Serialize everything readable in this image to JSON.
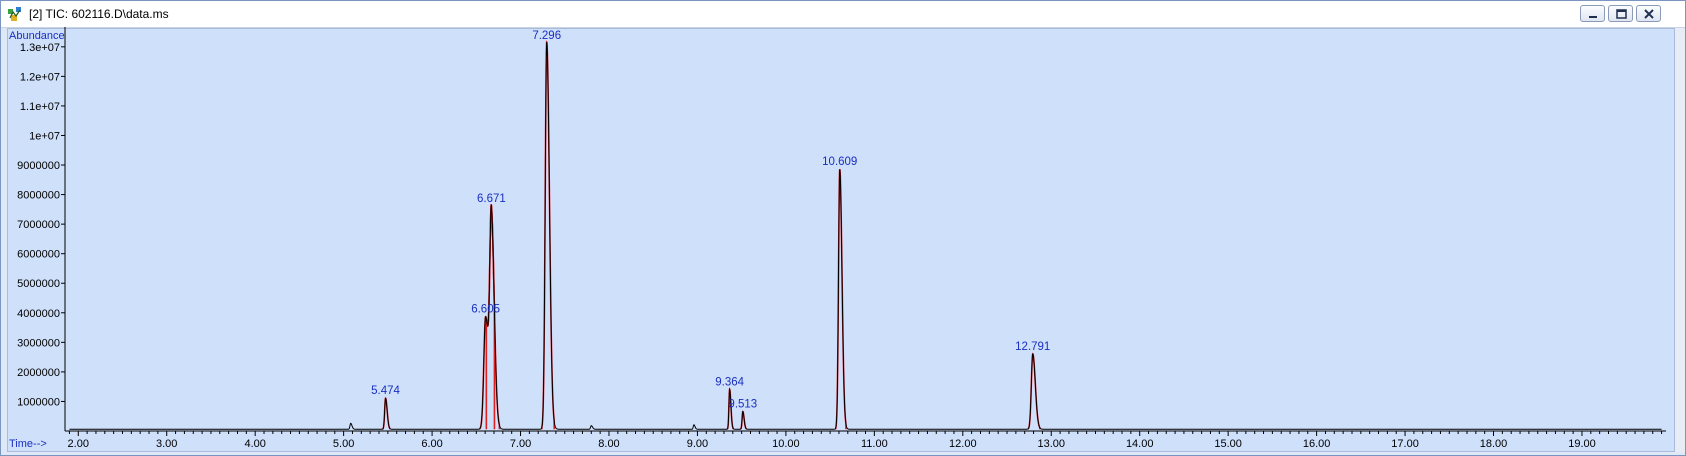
{
  "window": {
    "title": "[2] TIC: 602116.D\\data.ms",
    "icon": "chromatogram-app-icon",
    "controls": [
      "minimize",
      "restore",
      "close"
    ]
  },
  "chart_data": {
    "type": "line",
    "ylabel": "Abundance",
    "xlabel": "Time-->",
    "xlim": [
      1.85,
      19.95
    ],
    "ylim": [
      0,
      13400000
    ],
    "x_ticks": [
      2,
      3,
      4,
      5,
      6,
      7,
      8,
      9,
      10,
      11,
      12,
      13,
      14,
      15,
      16,
      17,
      18,
      19
    ],
    "x_tick_labels": [
      "2.00",
      "3.00",
      "4.00",
      "5.00",
      "6.00",
      "7.00",
      "8.00",
      "9.00",
      "10.00",
      "11.00",
      "12.00",
      "13.00",
      "14.00",
      "15.00",
      "16.00",
      "17.00",
      "18.00",
      "19.00"
    ],
    "y_ticks": [
      1000000,
      2000000,
      3000000,
      4000000,
      5000000,
      6000000,
      7000000,
      8000000,
      9000000,
      10000000,
      11000000,
      12000000,
      13000000
    ],
    "y_tick_labels": [
      "1000000",
      "2000000",
      "3000000",
      "4000000",
      "5000000",
      "6000000",
      "7000000",
      "8000000",
      "9000000",
      "1e+07",
      "1.1e+07",
      "1.2e+07",
      "1.3e+07"
    ],
    "baseline": 60000,
    "peaks": [
      {
        "label": "5.474",
        "rt": 5.474,
        "height": 1050000,
        "sigma": 0.01
      },
      {
        "label": "6.605",
        "rt": 6.605,
        "height": 3800000,
        "sigma": 0.02
      },
      {
        "label": "6.671",
        "rt": 6.671,
        "height": 6850000,
        "sigma": 0.018
      },
      {
        "label": "7.296",
        "rt": 7.296,
        "height": 13100000,
        "sigma": 0.017
      },
      {
        "label": "9.364",
        "rt": 9.364,
        "height": 1350000,
        "sigma": 0.008
      },
      {
        "label": "9.513",
        "rt": 9.513,
        "height": 600000,
        "sigma": 0.008
      },
      {
        "label": "10.609",
        "rt": 10.609,
        "height": 8800000,
        "sigma": 0.014
      },
      {
        "label": "12.791",
        "rt": 12.791,
        "height": 2550000,
        "sigma": 0.016
      }
    ],
    "minor_peaks": [
      {
        "rt": 5.08,
        "height": 200000,
        "sigma": 0.008
      },
      {
        "rt": 7.8,
        "height": 120000,
        "sigma": 0.008
      },
      {
        "rt": 8.96,
        "height": 150000,
        "sigma": 0.007
      }
    ],
    "colors": {
      "trace": "#000000",
      "integration": "#e02020",
      "label": "#1a2fc0",
      "plot_background": "#cfe0fb"
    }
  }
}
